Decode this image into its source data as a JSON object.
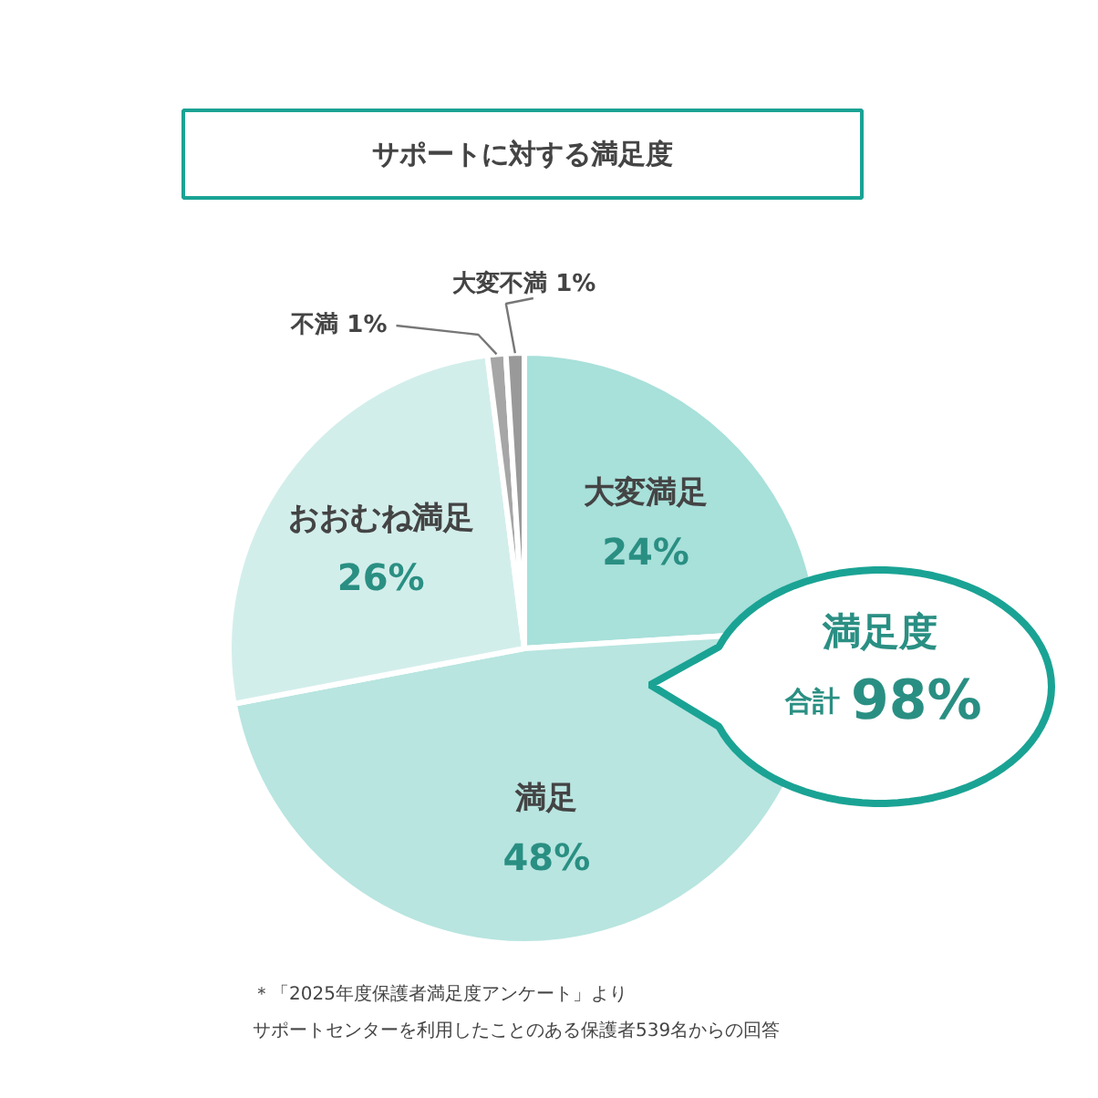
{
  "chart_data": {
    "type": "pie",
    "title": "サポートに対する満足度",
    "categories": [
      "大変満足",
      "満足",
      "おおむね満足",
      "不満",
      "大変不満"
    ],
    "values": [
      24,
      48,
      26,
      1,
      1
    ],
    "value_labels": [
      "24%",
      "48%",
      "26%",
      "1%",
      "1%"
    ],
    "colors": [
      "#a8e0da",
      "#b8e5e0",
      "#d2eeeb",
      "#a6a6a6",
      "#999999"
    ],
    "annotations": [
      "満足度",
      "合計 98%",
      "＊「2025年度保護者満足度アンケート」より",
      "サポートセンターを利用したことのある保護者539名からの回答"
    ]
  }
}
